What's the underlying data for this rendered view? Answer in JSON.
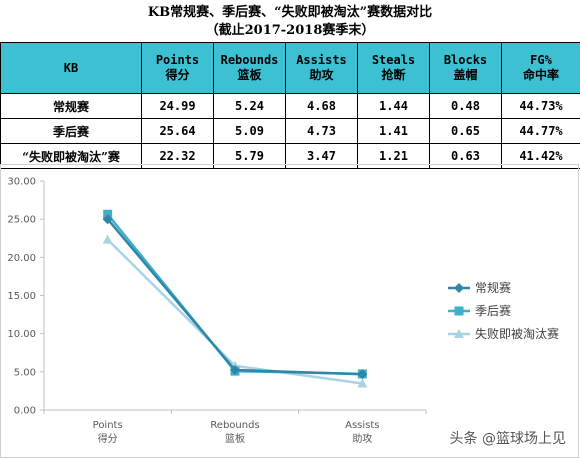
{
  "title": {
    "line1": "KB常规赛、季后赛、“失败即被淘汰”赛数据对比",
    "line2": "（截止2017-2018赛季末）"
  },
  "table": {
    "corner": "KB",
    "headers": [
      {
        "en": "Points",
        "zh": "得分"
      },
      {
        "en": "Rebounds",
        "zh": "篮板"
      },
      {
        "en": "Assists",
        "zh": "助攻"
      },
      {
        "en": "Steals",
        "zh": "抢断"
      },
      {
        "en": "Blocks",
        "zh": "盖帽"
      },
      {
        "en": "FG%",
        "zh": "命中率"
      }
    ],
    "rows": [
      {
        "name": "常规赛",
        "values": [
          "24.99",
          "5.24",
          "4.68",
          "1.44",
          "0.48",
          "44.73%"
        ]
      },
      {
        "name": "季后赛",
        "values": [
          "25.64",
          "5.09",
          "4.73",
          "1.41",
          "0.65",
          "44.77%"
        ]
      },
      {
        "name": "“失败即被淘汰”赛",
        "values": [
          "22.32",
          "5.79",
          "3.47",
          "1.21",
          "0.63",
          "41.42%"
        ]
      }
    ],
    "header_color": "#3cc0d2"
  },
  "chart_data": {
    "type": "line",
    "categories": [
      "Points\n得分",
      "Rebounds\n篮板",
      "Assists\n助攻"
    ],
    "category_lines": [
      [
        "Points",
        "得分"
      ],
      [
        "Rebounds",
        "篮板"
      ],
      [
        "Assists",
        "助攻"
      ]
    ],
    "series": [
      {
        "name": "常规赛",
        "values": [
          24.99,
          5.24,
          4.68
        ],
        "color": "#2e86a8",
        "marker": "diamond"
      },
      {
        "name": "季后赛",
        "values": [
          25.64,
          5.09,
          4.73
        ],
        "color": "#3fb0c8",
        "marker": "square"
      },
      {
        "name": "失败即被淘汰赛",
        "values": [
          22.32,
          5.79,
          3.47
        ],
        "color": "#a6d4e4",
        "marker": "triangle"
      }
    ],
    "ylim": [
      0,
      30
    ],
    "yticks": [
      "0.00",
      "5.00",
      "10.00",
      "15.00",
      "20.00",
      "25.00",
      "30.00"
    ],
    "grid": false,
    "legend": "right"
  },
  "watermark": "头条 @篮球场上见"
}
